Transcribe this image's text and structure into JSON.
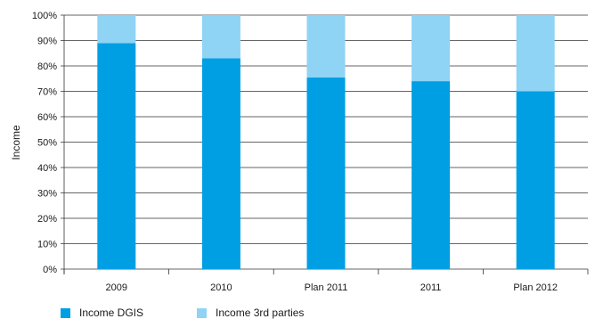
{
  "chart_data": {
    "type": "bar",
    "stacked": true,
    "title": "",
    "xlabel": "",
    "ylabel": "Income",
    "ylim": [
      0,
      100
    ],
    "y_ticks": [
      "0%",
      "10%",
      "20%",
      "30%",
      "40%",
      "50%",
      "60%",
      "70%",
      "80%",
      "90%",
      "100%"
    ],
    "categories": [
      "2009",
      "2010",
      "Plan 2011",
      "2011",
      "Plan 2012"
    ],
    "series": [
      {
        "name": "Income DGIS",
        "color": "#009fe3",
        "values": [
          89,
          83,
          75.5,
          74,
          70
        ]
      },
      {
        "name": "Income 3rd parties",
        "color": "#8fd3f5",
        "values": [
          11,
          17,
          24.5,
          26,
          30
        ]
      }
    ],
    "grid": true,
    "legend": "bottom-left"
  }
}
